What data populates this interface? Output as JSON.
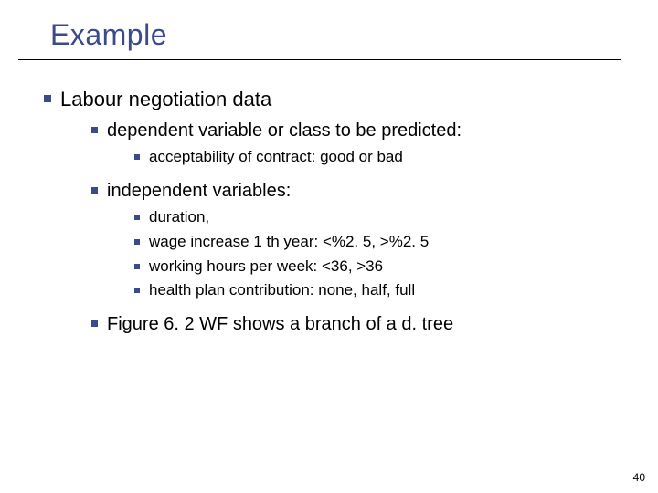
{
  "title": "Example",
  "bullet_color": "#3a4a8a",
  "title_color": "#3a4a8a",
  "text_color": "#000000",
  "background_color": "#ffffff",
  "page_number": "40",
  "lvl1": {
    "item1": "Labour negotiation data"
  },
  "lvl2": {
    "item1": "dependent variable or class to be predicted:",
    "item2": "independent variables:",
    "item3": "Figure 6. 2 WF shows a branch of a d. tree"
  },
  "lvl3a": {
    "item1": "acceptability of contract: good or bad"
  },
  "lvl3b": {
    "item1": "duration,",
    "item2": "wage increase 1 th year: <%2. 5, >%2. 5",
    "item3": "working hours per week: <36, >36",
    "item4": "health plan contribution: none, half, full"
  }
}
